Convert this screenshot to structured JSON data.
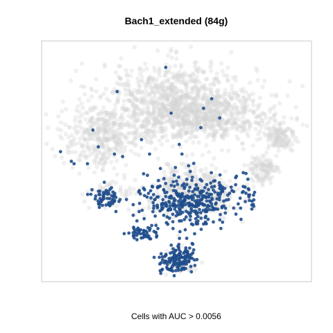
{
  "chart_data": {
    "type": "scatter",
    "title": "Bach1_extended (84g)",
    "xlabel": "Cells with AUC > 0.0056",
    "ylabel": "",
    "axes_shown": false,
    "grid": false,
    "legend": "none",
    "colors": {
      "background_cells": "#d3d3d3",
      "highlighted_cells": "#1f4e8c",
      "frame": "#c8c8c8"
    },
    "xlim": [
      0,
      100
    ],
    "ylim": [
      0,
      100
    ],
    "series": [
      {
        "role": "background",
        "color": "#d3d3d3",
        "regions": [
          {
            "cx": 50,
            "cy": 75,
            "rx": 29,
            "ry": 16,
            "n": 900
          },
          {
            "cx": 62,
            "cy": 68,
            "rx": 25,
            "ry": 10,
            "n": 450
          },
          {
            "cx": 22,
            "cy": 60,
            "rx": 15,
            "ry": 12,
            "n": 350
          },
          {
            "cx": 88,
            "cy": 60,
            "rx": 6,
            "ry": 7,
            "n": 120
          },
          {
            "cx": 82,
            "cy": 46,
            "rx": 6,
            "ry": 7,
            "n": 110
          },
          {
            "cx": 55,
            "cy": 37,
            "rx": 18,
            "ry": 11,
            "n": 400
          },
          {
            "cx": 24,
            "cy": 36,
            "rx": 7,
            "ry": 5,
            "n": 60
          },
          {
            "cx": 50,
            "cy": 9,
            "rx": 6,
            "ry": 5,
            "n": 80
          }
        ]
      },
      {
        "role": "highlighted",
        "color": "#1f4e8c",
        "regions": [
          {
            "cx": 55,
            "cy": 34,
            "rx": 18,
            "ry": 11,
            "n": 360
          },
          {
            "cx": 38,
            "cy": 20,
            "rx": 7,
            "ry": 3,
            "n": 45
          },
          {
            "cx": 24,
            "cy": 35,
            "rx": 5,
            "ry": 5,
            "n": 55
          },
          {
            "cx": 50,
            "cy": 9,
            "rx": 6,
            "ry": 6,
            "n": 140
          },
          {
            "cx": 76,
            "cy": 35,
            "rx": 4,
            "ry": 3,
            "n": 14
          }
        ],
        "scattered_points": [
          [
            46,
            89
          ],
          [
            28,
            79
          ],
          [
            63,
            76
          ],
          [
            48,
            70
          ],
          [
            60,
            72
          ],
          [
            19,
            63
          ],
          [
            7,
            54
          ],
          [
            21,
            56
          ],
          [
            27,
            53
          ],
          [
            11,
            50
          ],
          [
            17,
            49
          ],
          [
            30,
            52
          ],
          [
            40,
            53
          ],
          [
            51,
            57
          ],
          [
            52,
            53
          ],
          [
            66,
            68
          ],
          [
            59,
            64
          ],
          [
            12,
            49
          ],
          [
            44,
            47
          ],
          [
            37,
            59
          ]
        ]
      }
    ]
  }
}
